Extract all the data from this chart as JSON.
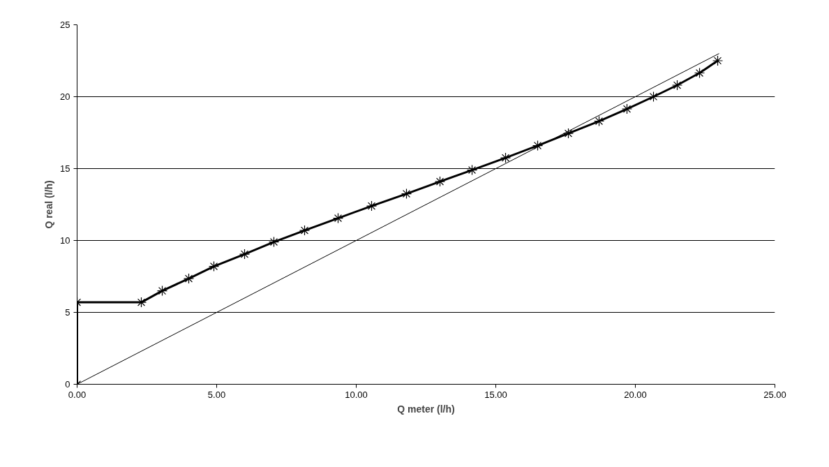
{
  "chart_data": {
    "type": "line",
    "xlabel": "Q meter (l/h)",
    "ylabel": "Q real (l/h)",
    "xlim": [
      0,
      25
    ],
    "xticks": [
      {
        "value": 0,
        "label": "0.00"
      },
      {
        "value": 5,
        "label": "5.00"
      },
      {
        "value": 10,
        "label": "10.00"
      },
      {
        "value": 15,
        "label": "15.00"
      },
      {
        "value": 20,
        "label": "20.00"
      },
      {
        "value": 25,
        "label": "25.00"
      }
    ],
    "ylim": [
      0,
      25
    ],
    "yticks": [
      0,
      5,
      10,
      15,
      20,
      25
    ],
    "grid": "y",
    "series": [
      {
        "color": "#000000",
        "marker": "cross",
        "x": [
          0,
          0,
          2.3,
          3.05,
          4.0,
          4.9,
          6.0,
          7.05,
          8.15,
          9.35,
          10.55,
          11.8,
          13.0,
          14.15,
          15.35,
          16.5,
          17.6,
          18.7,
          19.7,
          20.65,
          21.5,
          22.3,
          22.95
        ],
        "values": [
          0,
          5.7,
          5.7,
          6.5,
          7.35,
          8.2,
          9.05,
          9.9,
          10.7,
          11.55,
          12.4,
          13.25,
          14.1,
          14.9,
          15.75,
          16.6,
          17.45,
          18.3,
          19.15,
          20.0,
          20.8,
          21.65,
          22.5
        ]
      },
      {
        "color": "#000000",
        "marker": "none",
        "x": [
          0,
          23
        ],
        "values": [
          0,
          23
        ]
      }
    ]
  }
}
